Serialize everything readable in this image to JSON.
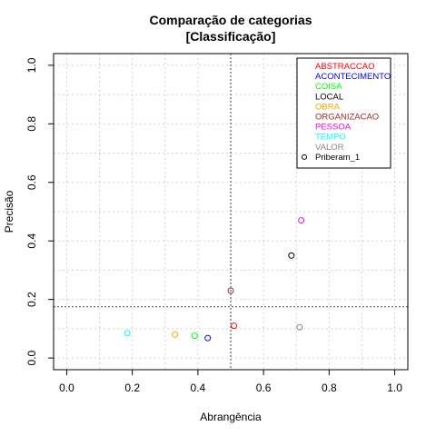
{
  "chart_data": {
    "type": "scatter",
    "title": "Comparação de categorias",
    "subtitle": "[Classificação]",
    "xlabel": "Abrangência",
    "ylabel": "Precisão",
    "xlim": [
      -0.04,
      1.04
    ],
    "ylim": [
      -0.04,
      1.04
    ],
    "x_ticks": [
      {
        "value": 0.0,
        "label": "0.0"
      },
      {
        "value": 0.2,
        "label": "0.2"
      },
      {
        "value": 0.4,
        "label": "0.4"
      },
      {
        "value": 0.6,
        "label": "0.6"
      },
      {
        "value": 0.8,
        "label": "0.8"
      },
      {
        "value": 1.0,
        "label": "1.0"
      }
    ],
    "y_ticks": [
      {
        "value": 0.0,
        "label": "0.0"
      },
      {
        "value": 0.2,
        "label": "0.2"
      },
      {
        "value": 0.4,
        "label": "0.4"
      },
      {
        "value": 0.6,
        "label": "0.6"
      },
      {
        "value": 0.8,
        "label": "0.8"
      },
      {
        "value": 1.0,
        "label": "1.0"
      }
    ],
    "grid": true,
    "reference_lines": {
      "x": 0.5,
      "y": 0.175
    },
    "legend_position": "top-right",
    "legend": [
      {
        "label": "ABSTRACCAO",
        "color": "#ff0000",
        "marker": false
      },
      {
        "label": "ACONTECIMENTO",
        "color": "#0000ff",
        "marker": false
      },
      {
        "label": "COISA",
        "color": "#00ff00",
        "marker": false
      },
      {
        "label": "LOCAL",
        "color": "#000000",
        "marker": false
      },
      {
        "label": "OBRA",
        "color": "#ffa500",
        "marker": false
      },
      {
        "label": "ORGANIZACAO",
        "color": "#a52a2a",
        "marker": false
      },
      {
        "label": "PESSOA",
        "color": "#ff00ff",
        "marker": false
      },
      {
        "label": "TEMPO",
        "color": "#00ffff",
        "marker": false
      },
      {
        "label": "VALOR",
        "color": "#888888",
        "marker": false
      },
      {
        "label": "Priberam_1",
        "color": "#000000",
        "marker": true
      }
    ],
    "points": [
      {
        "category": "ABSTRACCAO",
        "color": "#ff0000",
        "x": 0.51,
        "y": 0.11
      },
      {
        "category": "ACONTECIMENTO",
        "color": "#0000ff",
        "x": 0.43,
        "y": 0.068
      },
      {
        "category": "COISA",
        "color": "#00ff00",
        "x": 0.39,
        "y": 0.076
      },
      {
        "category": "LOCAL",
        "color": "#000000",
        "x": 0.685,
        "y": 0.35
      },
      {
        "category": "OBRA",
        "color": "#ffa500",
        "x": 0.33,
        "y": 0.08
      },
      {
        "category": "ORGANIZACAO",
        "color": "#a52a2a",
        "x": 0.5,
        "y": 0.23
      },
      {
        "category": "PESSOA",
        "color": "#ff00ff",
        "x": 0.715,
        "y": 0.47
      },
      {
        "category": "TEMPO",
        "color": "#00ffff",
        "x": 0.185,
        "y": 0.085
      },
      {
        "category": "VALOR",
        "color": "#888888",
        "x": 0.71,
        "y": 0.105
      }
    ]
  }
}
